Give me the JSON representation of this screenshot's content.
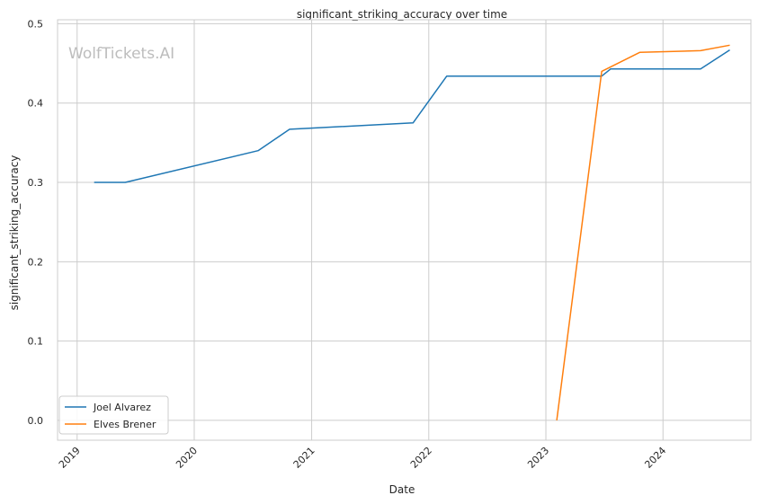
{
  "chart_data": {
    "type": "line",
    "title": "significant_striking_accuracy over time",
    "xlabel": "Date",
    "ylabel": "significant_striking_accuracy",
    "watermark": "WolfTickets.AI",
    "x_ticks": [
      "2019",
      "2020",
      "2021",
      "2022",
      "2023",
      "2024"
    ],
    "y_ticks": [
      "0.0",
      "0.1",
      "0.2",
      "0.3",
      "0.4",
      "0.5"
    ],
    "xlim": [
      "2018-11-01",
      "2024-10-01"
    ],
    "ylim": [
      -0.025,
      0.505
    ],
    "grid": true,
    "legend_position": "lower-left",
    "series": [
      {
        "name": "Joel Alvarez",
        "color": "#1f77b4",
        "x": [
          "2019-02-23",
          "2019-05-31",
          "2020-07-18",
          "2020-10-24",
          "2021-11-13",
          "2022-02-26",
          "2023-06-24",
          "2023-07-22",
          "2024-04-27",
          "2024-07-27"
        ],
        "y": [
          0.3,
          0.3,
          0.34,
          0.367,
          0.375,
          0.434,
          0.434,
          0.443,
          0.443,
          0.467
        ]
      },
      {
        "name": "Elves Brener",
        "color": "#ff7f0e",
        "x": [
          "2023-02-04",
          "2023-06-24",
          "2023-10-21",
          "2024-04-27",
          "2024-07-27"
        ],
        "y": [
          0.0,
          0.44,
          0.464,
          0.466,
          0.473
        ]
      }
    ]
  }
}
